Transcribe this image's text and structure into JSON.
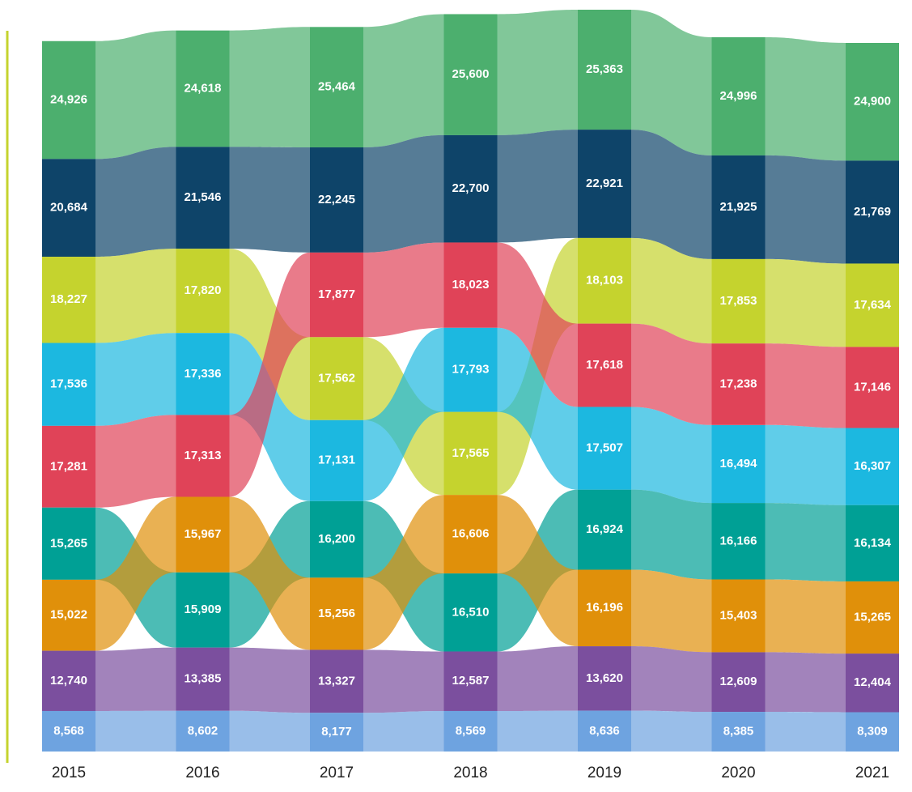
{
  "chart_data": {
    "type": "ribbon",
    "categories": [
      "2015",
      "2016",
      "2017",
      "2018",
      "2019",
      "2020",
      "2021"
    ],
    "series": [
      {
        "color": "#4caf6e",
        "values": [
          24926,
          24618,
          25464,
          25600,
          25363,
          24996,
          24900
        ],
        "value_labels": [
          "24,926",
          "24,618",
          "25,464",
          "25,600",
          "25,363",
          "24,996",
          "24,900"
        ]
      },
      {
        "color": "#0e4469",
        "values": [
          20684,
          21546,
          22245,
          22700,
          22921,
          21925,
          21769
        ],
        "value_labels": [
          "20,684",
          "21,546",
          "22,245",
          "22,700",
          "22,921",
          "21,925",
          "21,769"
        ]
      },
      {
        "color": "#c5d32e",
        "values": [
          18227,
          17820,
          17562,
          17565,
          18103,
          17853,
          17634
        ],
        "value_labels": [
          "18,227",
          "17,820",
          "17,562",
          "17,565",
          "18,103",
          "17,853",
          "17,634"
        ]
      },
      {
        "color": "#1cb8e0",
        "values": [
          17536,
          17336,
          17131,
          17793,
          17507,
          16494,
          16307
        ],
        "value_labels": [
          "17,536",
          "17,336",
          "17,131",
          "17,793",
          "17,507",
          "16,494",
          "16,307"
        ]
      },
      {
        "color": "#e04358",
        "values": [
          17281,
          17313,
          17877,
          18023,
          17618,
          17238,
          17146
        ],
        "value_labels": [
          "17,281",
          "17,313",
          "17,877",
          "18,023",
          "17,618",
          "17,238",
          "17,146"
        ]
      },
      {
        "color": "#00a095",
        "values": [
          15265,
          15909,
          16200,
          16510,
          16924,
          16166,
          16134
        ],
        "value_labels": [
          "15,265",
          "15,909",
          "16,200",
          "16,510",
          "16,924",
          "16,166",
          "16,134"
        ]
      },
      {
        "color": "#e0900a",
        "values": [
          15022,
          15967,
          15256,
          16606,
          16196,
          15403,
          15265
        ],
        "value_labels": [
          "15,022",
          "15,967",
          "15,256",
          "16,606",
          "16,196",
          "15,403",
          "15,265"
        ]
      },
      {
        "color": "#7b4f9e",
        "values": [
          12740,
          13385,
          13327,
          12587,
          13620,
          12609,
          12404
        ],
        "value_labels": [
          "12,740",
          "13,385",
          "13,327",
          "12,587",
          "13,620",
          "12,609",
          "12,404"
        ]
      },
      {
        "color": "#6ea3e0",
        "values": [
          8568,
          8602,
          8177,
          8569,
          8636,
          8385,
          8309
        ],
        "value_labels": [
          "8,568",
          "8,602",
          "8,177",
          "8,569",
          "8,636",
          "8,385",
          "8,309"
        ]
      }
    ]
  }
}
